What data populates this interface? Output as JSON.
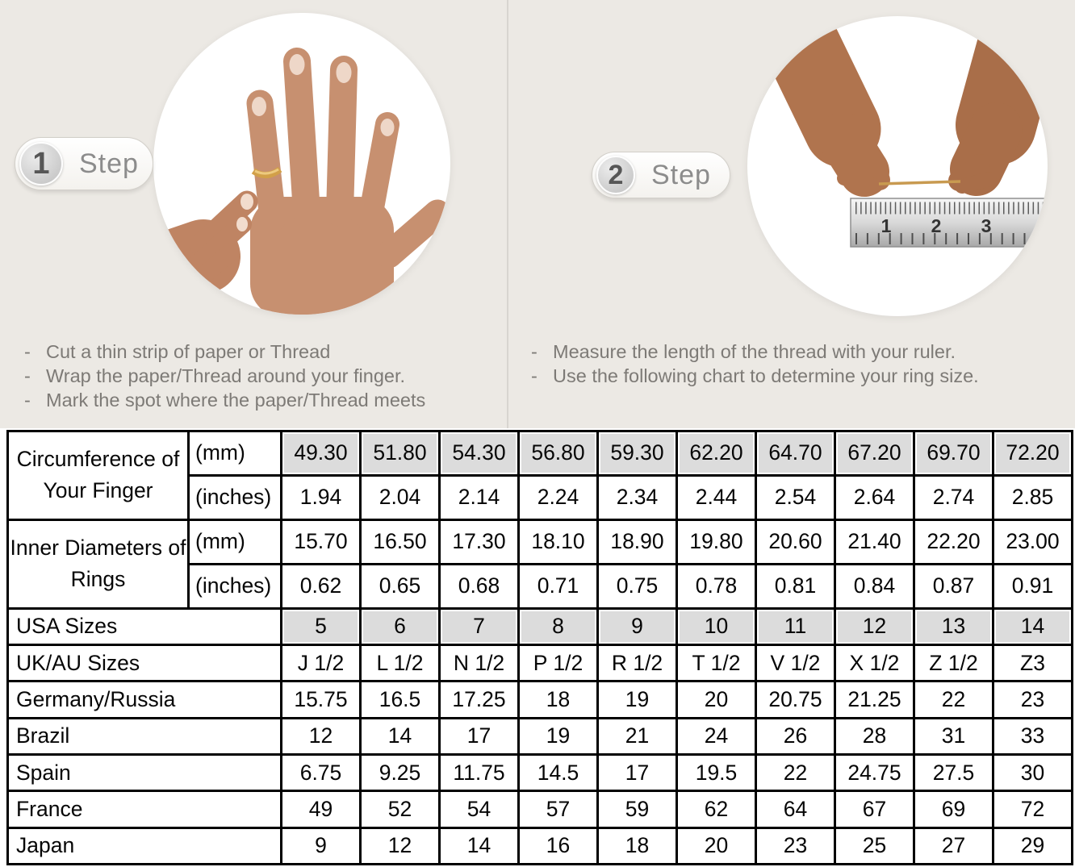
{
  "colors": {
    "top_background": "#ece9e4",
    "table_shaded_cell": "#dcdcdc",
    "table_border": "#000000",
    "ring_gold": "#d2a049"
  },
  "bullet_glyph": "-",
  "steps": [
    {
      "number": "1",
      "label": "Step",
      "bullets": [
        "Cut a thin strip of paper or Thread",
        "Wrap the paper/Thread around your finger.",
        "Mark the spot where the paper/Thread meets"
      ]
    },
    {
      "number": "2",
      "label": "Step",
      "bullets": [
        "Measure the length of the thread with your ruler.",
        "Use the following chart to determine your ring size."
      ]
    }
  ],
  "ruler": {
    "marks": [
      "1",
      "2",
      "3"
    ]
  },
  "table": {
    "rows": [
      {
        "label": "Circumference of Your Finger",
        "label_rowspan": 2,
        "unit": "(mm)",
        "shaded": true,
        "thin_bottom": true,
        "values": [
          "49.30",
          "51.80",
          "54.30",
          "56.80",
          "59.30",
          "62.20",
          "64.70",
          "67.20",
          "69.70",
          "72.20"
        ]
      },
      {
        "unit": "(inches)",
        "values": [
          "1.94",
          "2.04",
          "2.14",
          "2.24",
          "2.34",
          "2.44",
          "2.54",
          "2.64",
          "2.74",
          "2.85"
        ]
      },
      {
        "label": "Inner Diameters of Rings",
        "label_rowspan": 2,
        "unit": "(mm)",
        "thin_bottom": true,
        "values": [
          "15.70",
          "16.50",
          "17.30",
          "18.10",
          "18.90",
          "19.80",
          "20.60",
          "21.40",
          "22.20",
          "23.00"
        ]
      },
      {
        "unit": "(inches)",
        "values": [
          "0.62",
          "0.65",
          "0.68",
          "0.71",
          "0.75",
          "0.78",
          "0.81",
          "0.84",
          "0.87",
          "0.91"
        ]
      },
      {
        "label": "USA Sizes",
        "label_colspan": 2,
        "shaded": true,
        "values": [
          "5",
          "6",
          "7",
          "8",
          "9",
          "10",
          "11",
          "12",
          "13",
          "14"
        ]
      },
      {
        "label": "UK/AU Sizes",
        "label_colspan": 2,
        "values": [
          "J 1/2",
          "L 1/2",
          "N 1/2",
          "P 1/2",
          "R 1/2",
          "T 1/2",
          "V 1/2",
          "X 1/2",
          "Z 1/2",
          "Z3"
        ]
      },
      {
        "label": "Germany/Russia",
        "label_colspan": 2,
        "values": [
          "15.75",
          "16.5",
          "17.25",
          "18",
          "19",
          "20",
          "20.75",
          "21.25",
          "22",
          "23"
        ]
      },
      {
        "label": "Brazil",
        "label_colspan": 2,
        "values": [
          "12",
          "14",
          "17",
          "19",
          "21",
          "24",
          "26",
          "28",
          "31",
          "33"
        ]
      },
      {
        "label": "Spain",
        "label_colspan": 2,
        "values": [
          "6.75",
          "9.25",
          "11.75",
          "14.5",
          "17",
          "19.5",
          "22",
          "24.75",
          "27.5",
          "30"
        ]
      },
      {
        "label": "France",
        "label_colspan": 2,
        "values": [
          "49",
          "52",
          "54",
          "57",
          "59",
          "62",
          "64",
          "67",
          "69",
          "72"
        ]
      },
      {
        "label": "Japan",
        "label_colspan": 2,
        "values": [
          "9",
          "12",
          "14",
          "16",
          "18",
          "20",
          "23",
          "25",
          "27",
          "29"
        ]
      }
    ]
  }
}
